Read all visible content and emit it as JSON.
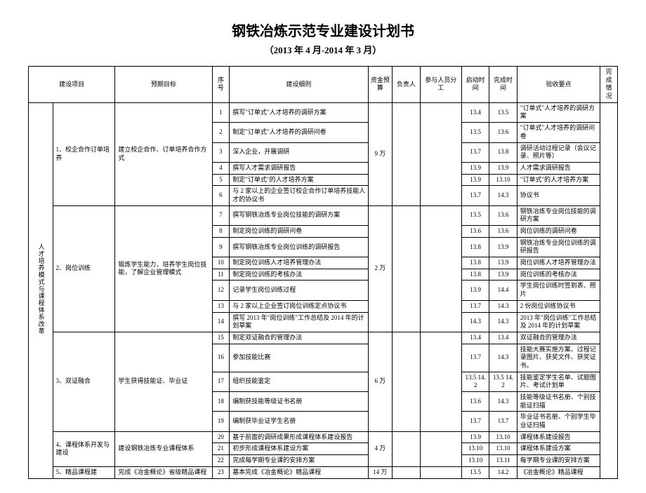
{
  "title": "钢铁冶炼示范专业建设计划书",
  "subtitle": "（2013 年 4 月-2014 年 3 月）",
  "headers": {
    "project": "建设项目",
    "goal": "预期目标",
    "seq": "序号",
    "detail": "建设细则",
    "budget": "资金预算",
    "responsible": "负责人",
    "staff": "参与人员分工",
    "start": "启动时间",
    "end": "完成时间",
    "checkpoint": "验收要点",
    "status": "完成情况"
  },
  "bigProject": "人才培养模式与课程体系改革",
  "groups": [
    {
      "sub": "1、校企合作订单培养",
      "goal": "建立校企合作、订单培养合作方式",
      "budget": "9 万",
      "rows": [
        {
          "n": "1",
          "d": "撰写\"订单式\"人才培养的调研方案",
          "s": "13.4",
          "e": "13.5",
          "c": "\"订单式\"人才培养的调研方案"
        },
        {
          "n": "2",
          "d": "制定\"订单式\"人才培养的调研问卷",
          "s": "13.5",
          "e": "13.6",
          "c": "\"订单式\"人才培养的调研问卷"
        },
        {
          "n": "3",
          "d": "深入企业，开展调研",
          "s": "13.7",
          "e": "13.8",
          "c": "调研活动过程记录（会议记录、照片等）"
        },
        {
          "n": "4",
          "d": "撰写人才需求调研报告",
          "s": "13.9",
          "e": "13.9",
          "c": "人才需求调研报告"
        },
        {
          "n": "5",
          "d": "制定\"订单式\"的人才培养方案",
          "s": "13.9",
          "e": "13.10",
          "c": "\"订单式\"的人才培养方案"
        },
        {
          "n": "6",
          "d": "与 2 家以上的企业签订校企合作订单培养技能人才的协议书",
          "s": "13.7",
          "e": "14.3",
          "c": "协议书"
        }
      ]
    },
    {
      "sub": "2、岗位训练",
      "goal": "锻炼学生能力，培养学生岗位技能，了解企业管理模式",
      "budget": "2 万",
      "rows": [
        {
          "n": "7",
          "d": "撰写钢铁冶炼专业岗位技能的调研方案",
          "s": "13.5",
          "e": "13.6",
          "c": "钢铁冶炼专业岗位技能的调研方案"
        },
        {
          "n": "8",
          "d": "制定岗位训练的调研问卷",
          "s": "13.6",
          "e": "13.6",
          "c": "岗位训练的调研问卷"
        },
        {
          "n": "9",
          "d": "撰写钢铁冶炼专业岗位训练的调研报告",
          "s": "13.8",
          "e": "13.9",
          "c": "钢铁冶炼专业岗位训练的调研报告"
        },
        {
          "n": "10",
          "d": "制定岗位训练人才培养管理办法",
          "s": "13.8",
          "e": "13.9",
          "c": "岗位训练人才培养管理办法"
        },
        {
          "n": "11",
          "d": "制定岗位训练的考核办法",
          "s": "13.8",
          "e": "13.9",
          "c": "岗位训练的考核办法"
        },
        {
          "n": "12",
          "d": "记录学生岗位训练过程",
          "s": "13.9",
          "e": "14.4",
          "c": "学生岗位训练时签到表、照片"
        },
        {
          "n": "13",
          "d": "与 2 家以上企业签订岗位训练定点协议书",
          "s": "13.7",
          "e": "14.3",
          "c": "2 份岗位训练协议书"
        },
        {
          "n": "14",
          "d": "撰写 2013 年\"岗位训练\"工作总结及 2014 年的计划草案",
          "s": "14.3",
          "e": "14.3",
          "c": "2013 年\"岗位训练\"工作总结及 2014 年的计划草案"
        }
      ]
    },
    {
      "sub": "3、双证融合",
      "goal": "学生获得技能证、毕业证",
      "budget": "6 万",
      "rows": [
        {
          "n": "15",
          "d": "制定双证融合的管理办法",
          "s": "13.4",
          "e": "13.4",
          "c": "双证融合的管理办法"
        },
        {
          "n": "16",
          "d": "参加技能比赛",
          "s": "13.7",
          "e": "14.3",
          "c": "技能大赛实施方案、过程记录图片、获奖文件、获奖证书。"
        },
        {
          "n": "17",
          "d": "组织技能鉴定",
          "s": "13.5 14.2",
          "e": "13.5 14.2",
          "c": "技能鉴定学生名单、试题图片、考试计划单"
        },
        {
          "n": "18",
          "d": "编制获技能等级证书名册",
          "s": "13.6",
          "e": "14.3",
          "c": "技能等级证书名册、个别技能证扫描"
        },
        {
          "n": "19",
          "d": "编制获毕业证学生名册",
          "s": "13.7",
          "e": "13.7",
          "c": "毕业证书名册、个别学生毕业证扫描"
        }
      ]
    },
    {
      "sub": "4、课程体系开发与建设",
      "goal": "建设钢铁冶炼专业课程体系",
      "budget": "4 万",
      "rows": [
        {
          "n": "20",
          "d": "基于前面的调研成果形成课程体系建设报告",
          "s": "13.9",
          "e": "13.10",
          "c": "课程体系建设报告"
        },
        {
          "n": "21",
          "d": "初步形成课程体系建设方案",
          "s": "13.10",
          "e": "13.10",
          "c": "课程体系建设方案"
        },
        {
          "n": "22",
          "d": "完成每学期专业课的安排方案",
          "s": "13.10",
          "e": "13.11",
          "c": "每学期专业课的安排方案"
        }
      ]
    },
    {
      "sub": "5、精品课程建",
      "goal": "完成《冶金概论》省级精品课程",
      "budget": "14 万",
      "rows": [
        {
          "n": "23",
          "d": "基本完成《冶金概论》精品课程",
          "s": "13.5",
          "e": "14.2",
          "c": "《冶金概论》精品课程"
        }
      ]
    }
  ]
}
